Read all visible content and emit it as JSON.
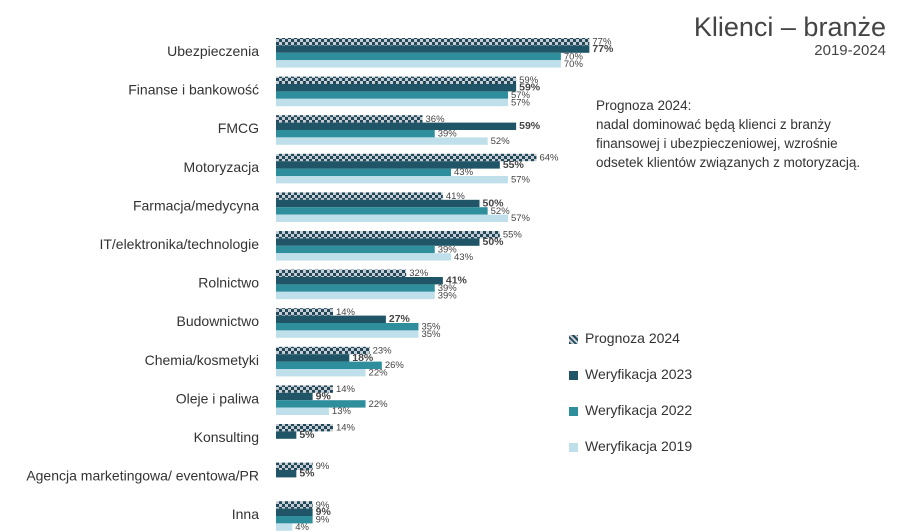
{
  "header": {
    "title": "Klienci – branże",
    "subtitle": "2019-2024"
  },
  "note": {
    "lines": [
      "Prognoza 2024:",
      "nadal dominować będą klienci z branży",
      "finansowej i ubezpieczeniowej, wzrośnie",
      "odsetek klientów związanych z motoryzacją."
    ]
  },
  "colors": {
    "prognoza_dark": "#1e4a5c",
    "prognoza_light": "#c8ccd2",
    "weryfikacja_2023": "#1f5566",
    "weryfikacja_2022": "#2f8e9c",
    "weryfikacja_2019": "#bfe0ea"
  },
  "chart_data": {
    "type": "bar",
    "orientation": "horizontal",
    "unit": "%",
    "xlim": [
      0,
      80
    ],
    "grid": false,
    "legend_position": "right",
    "categories": [
      "Ubezpieczenia",
      "Finanse i bankowość",
      "FMCG",
      "Motoryzacja",
      "Farmacja/medycyna",
      "IT/elektronika/technologie",
      "Rolnictwo",
      "Budownictwo",
      "Chemia/kosmetyki",
      "Oleje i paliwa",
      "Konsulting",
      "Agencja marketingowa/ eventowa/PR",
      "Inna"
    ],
    "series": [
      {
        "name": "Prognoza 2024",
        "pattern": "checker",
        "bold_label": false,
        "values": [
          77,
          59,
          36,
          64,
          41,
          55,
          32,
          14,
          23,
          14,
          14,
          9,
          9
        ]
      },
      {
        "name": "Weryfikacja 2023",
        "color": "#1f5566",
        "bold_label": true,
        "values": [
          77,
          59,
          59,
          55,
          50,
          50,
          41,
          27,
          18,
          9,
          5,
          5,
          9
        ]
      },
      {
        "name": "Weryfikacja 2022",
        "color": "#2f8e9c",
        "bold_label": false,
        "values": [
          70,
          57,
          39,
          43,
          52,
          39,
          39,
          35,
          26,
          22,
          null,
          null,
          9
        ]
      },
      {
        "name": "Weryfikacja 2019",
        "color": "#bfe0ea",
        "bold_label": false,
        "values": [
          70,
          57,
          52,
          57,
          57,
          43,
          39,
          35,
          22,
          13,
          null,
          null,
          4
        ]
      }
    ]
  }
}
